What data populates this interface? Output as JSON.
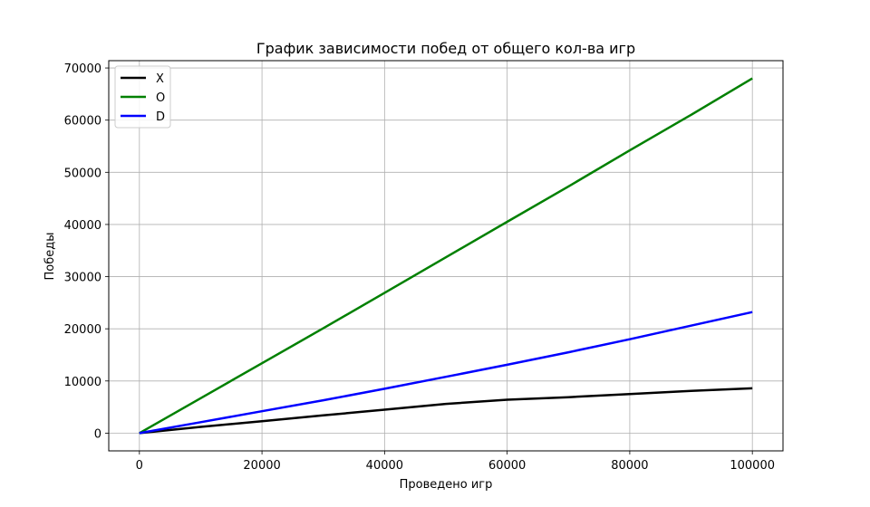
{
  "chart_data": {
    "type": "line",
    "title": "График зависимости побед от общего кол-ва игр",
    "xlabel": "Проведено игр",
    "ylabel": "Победы",
    "xlim": [
      -5000,
      105000
    ],
    "ylim": [
      -3400,
      71400
    ],
    "xticks": [
      0,
      20000,
      40000,
      60000,
      80000,
      100000
    ],
    "yticks": [
      0,
      10000,
      20000,
      30000,
      40000,
      50000,
      60000,
      70000
    ],
    "grid": true,
    "legend_position": "top-left",
    "series": [
      {
        "name": "X",
        "color": "#000000",
        "x": [
          0,
          10000,
          20000,
          30000,
          40000,
          50000,
          60000,
          70000,
          80000,
          90000,
          100000
        ],
        "y": [
          0,
          1200,
          2300,
          3400,
          4500,
          5600,
          6400,
          6900,
          7500,
          8100,
          8600
        ]
      },
      {
        "name": "O",
        "color": "#008000",
        "x": [
          0,
          10000,
          20000,
          30000,
          40000,
          50000,
          60000,
          70000,
          80000,
          90000,
          100000
        ],
        "y": [
          0,
          6700,
          13400,
          20100,
          26900,
          33700,
          40500,
          47300,
          54200,
          61000,
          68000
        ]
      },
      {
        "name": "D",
        "color": "#0000ff",
        "x": [
          0,
          10000,
          20000,
          30000,
          40000,
          50000,
          60000,
          70000,
          80000,
          90000,
          100000
        ],
        "y": [
          0,
          2100,
          4200,
          6300,
          8500,
          10800,
          13100,
          15500,
          18000,
          20600,
          23200
        ]
      }
    ]
  }
}
